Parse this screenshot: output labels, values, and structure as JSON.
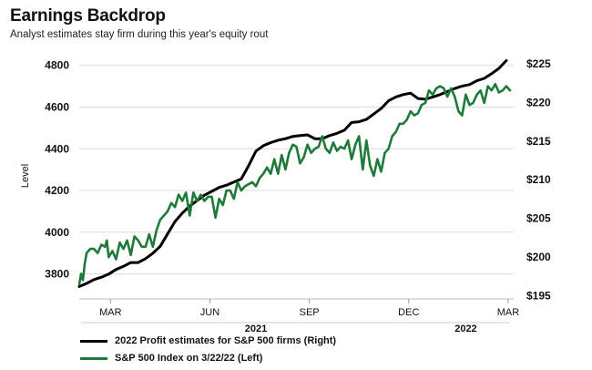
{
  "title": "Earnings Backdrop",
  "subtitle": "Analyst estimates stay firm during this year's equity rout",
  "chart_data": {
    "type": "line",
    "ylabel": "Level",
    "left_axis": {
      "ticks": [
        "4800",
        "4600",
        "4400",
        "4200",
        "4000",
        "3800"
      ],
      "values": [
        4800,
        4600,
        4400,
        4200,
        4000,
        3800
      ],
      "ylim": [
        3680,
        4860
      ]
    },
    "right_axis": {
      "ticks": [
        "$225",
        "$220",
        "$215",
        "$210",
        "$205",
        "$200",
        "$195"
      ],
      "values": [
        225,
        220,
        215,
        210,
        205,
        200,
        195
      ],
      "ylim": [
        194.6,
        226.4
      ]
    },
    "x_ticks": [
      {
        "label": "MAR",
        "t": 8.5
      },
      {
        "label": "JUN",
        "t": 35.5
      },
      {
        "label": "SEP",
        "t": 62.5
      },
      {
        "label": "DEC",
        "t": 89.5
      },
      {
        "label": "MAR",
        "t": 116.5
      }
    ],
    "year_labels": [
      {
        "label": "2021",
        "t": 48
      },
      {
        "label": "2022",
        "t": 105
      }
    ],
    "t_range": [
      0,
      118
    ],
    "series": [
      {
        "name": "2022 Profit estimates for S&P 500 firms (Right)",
        "color": "#000000",
        "axis": "right",
        "x": [
          0,
          2,
          4,
          6,
          8,
          10,
          12,
          14,
          16,
          18,
          20,
          22,
          24,
          26,
          28,
          30,
          32,
          34,
          36,
          38,
          40,
          42,
          44,
          46,
          48,
          50,
          52,
          54,
          56,
          58,
          60,
          62,
          64,
          66,
          68,
          70,
          72,
          74,
          76,
          78,
          80,
          82,
          84,
          86,
          88,
          90,
          92,
          94,
          96,
          98,
          100,
          102,
          104,
          106,
          108,
          110,
          112,
          114,
          116
        ],
        "values": [
          196.2,
          196.6,
          197.1,
          197.4,
          197.8,
          198.4,
          198.8,
          199.3,
          199.3,
          199.8,
          200.5,
          201.4,
          203.0,
          204.6,
          205.7,
          206.6,
          207.3,
          208.0,
          208.5,
          209.0,
          209.3,
          209.7,
          210.1,
          211.8,
          213.7,
          214.4,
          214.8,
          215.1,
          215.3,
          215.6,
          215.7,
          215.8,
          215.3,
          215.3,
          215.7,
          216.0,
          216.4,
          217.4,
          217.5,
          217.8,
          218.5,
          219.2,
          220.2,
          220.7,
          221.0,
          221.2,
          220.5,
          220.4,
          220.7,
          221.0,
          221.4,
          221.8,
          222.1,
          222.3,
          222.8,
          223.1,
          223.7,
          224.4,
          225.4
        ]
      },
      {
        "name": "S&P 500 Index on 3/22/22 (Left)",
        "color": "#1f7a3a",
        "axis": "left",
        "x": [
          0,
          0.5,
          1,
          1.5,
          2,
          3,
          4,
          5,
          6,
          7,
          7.5,
          8,
          9,
          10,
          11,
          12,
          13,
          14,
          15,
          16,
          17,
          18,
          19,
          20,
          21,
          22,
          23,
          24,
          25,
          26,
          27,
          28,
          29,
          30,
          31,
          32,
          33,
          34,
          35,
          36,
          37,
          38,
          39,
          40,
          41,
          42,
          43,
          44,
          45,
          46,
          47,
          48,
          49,
          50,
          51,
          52,
          53,
          54,
          55,
          56,
          57,
          58,
          59,
          60,
          61,
          62,
          63,
          64,
          65,
          66,
          67,
          68,
          69,
          70,
          71,
          72,
          73,
          74,
          75,
          76,
          77,
          78,
          79,
          80,
          81,
          82,
          83,
          84,
          85,
          86,
          87,
          88,
          89,
          90,
          91,
          92,
          93,
          94,
          95,
          96,
          97,
          98,
          99,
          100,
          101,
          102,
          103,
          104,
          105,
          106,
          107,
          108,
          109,
          110,
          111,
          112,
          113,
          114,
          115,
          116,
          117
        ],
        "values": [
          3750,
          3800,
          3770,
          3850,
          3900,
          3920,
          3920,
          3900,
          3940,
          3930,
          3960,
          3880,
          3910,
          3870,
          3950,
          3920,
          3960,
          3890,
          3980,
          3960,
          3930,
          3930,
          3990,
          3930,
          4010,
          4060,
          4080,
          4100,
          4140,
          4120,
          4180,
          4150,
          4190,
          4080,
          4190,
          4150,
          4180,
          4150,
          4170,
          4170,
          4070,
          4160,
          4130,
          4200,
          4200,
          4160,
          4240,
          4200,
          4220,
          4230,
          4240,
          4220,
          4260,
          4280,
          4310,
          4280,
          4350,
          4280,
          4370,
          4300,
          4380,
          4420,
          4410,
          4330,
          4360,
          4420,
          4380,
          4400,
          4410,
          4460,
          4400,
          4380,
          4430,
          4390,
          4410,
          4400,
          4440,
          4350,
          4420,
          4460,
          4300,
          4440,
          4320,
          4270,
          4350,
          4290,
          4380,
          4400,
          4460,
          4480,
          4520,
          4520,
          4540,
          4580,
          4560,
          4570,
          4610,
          4620,
          4680,
          4660,
          4690,
          4700,
          4690,
          4650,
          4690,
          4650,
          4580,
          4560,
          4660,
          4610,
          4620,
          4660,
          4680,
          4620,
          4700,
          4680,
          4710,
          4670,
          4680,
          4700,
          4680
        ]
      }
    ]
  }
}
